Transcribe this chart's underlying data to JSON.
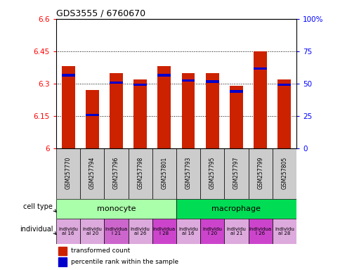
{
  "title": "GDS3555 / 6760670",
  "samples": [
    "GSM257770",
    "GSM257794",
    "GSM257796",
    "GSM257798",
    "GSM257801",
    "GSM257793",
    "GSM257795",
    "GSM257797",
    "GSM257799",
    "GSM257805"
  ],
  "red_values": [
    6.38,
    6.27,
    6.35,
    6.32,
    6.38,
    6.35,
    6.35,
    6.29,
    6.45,
    6.32
  ],
  "blue_values": [
    6.34,
    6.155,
    6.305,
    6.295,
    6.34,
    6.315,
    6.31,
    6.265,
    6.37,
    6.295
  ],
  "y_min": 6.0,
  "y_max": 6.6,
  "y_ticks": [
    6.0,
    6.15,
    6.3,
    6.45,
    6.6
  ],
  "y_tick_labels": [
    "6",
    "6.15",
    "6.3",
    "6.45",
    "6.6"
  ],
  "right_y_ticks": [
    0.0,
    0.25,
    0.5,
    0.75,
    1.0
  ],
  "right_y_tick_labels": [
    "0",
    "25",
    "50",
    "75",
    "100%"
  ],
  "cell_type_colors": {
    "monocyte": "#aaffaa",
    "macrophage": "#00dd55"
  },
  "individual_labels": [
    "individu\nal 16",
    "individu\nal 20",
    "individua\nl 21",
    "individu\nal 26",
    "individua\nl 28",
    "individu\nal 16",
    "individu\nl 20",
    "individu\nal 21",
    "individua\nl 26",
    "individu\nal 28"
  ],
  "individual_colors": [
    "#ddaadd",
    "#ddaadd",
    "#cc66cc",
    "#ddaadd",
    "#cc44cc",
    "#ddaadd",
    "#cc44cc",
    "#ddaadd",
    "#cc44cc",
    "#ddaadd"
  ],
  "bar_color": "#CC2200",
  "blue_color": "#0000CC",
  "sample_bg": "#cccccc",
  "label_cell_type": "cell type",
  "label_individual": "individual",
  "legend_red": "transformed count",
  "legend_blue": "percentile rank within the sample"
}
